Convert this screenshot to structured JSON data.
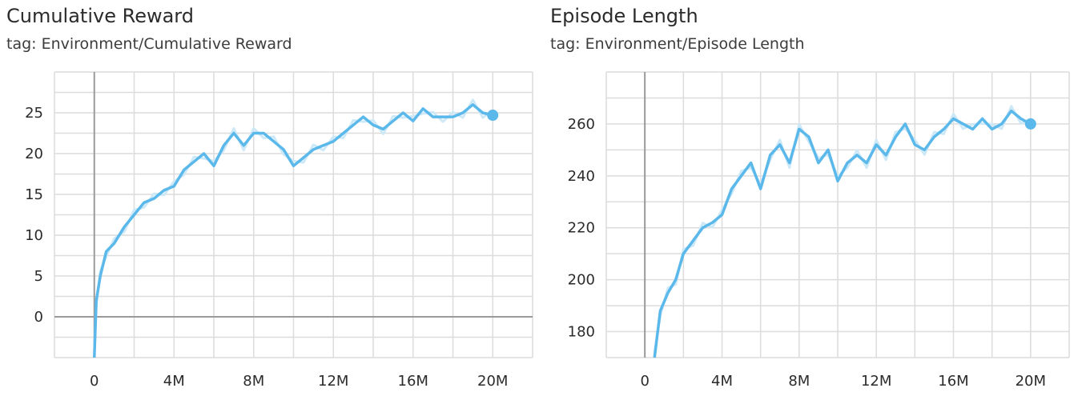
{
  "chart_data": [
    {
      "type": "line",
      "title": "Cumulative Reward",
      "subtitle": "tag: Environment/Cumulative Reward",
      "xlim": [
        -2000000,
        22000000
      ],
      "ylim": [
        -5,
        30
      ],
      "xticks": [
        0,
        4000000,
        8000000,
        12000000,
        16000000,
        20000000
      ],
      "xtick_labels": [
        "0",
        "4M",
        "8M",
        "12M",
        "16M",
        "20M"
      ],
      "yticks": [
        0,
        5,
        10,
        15,
        20,
        25
      ],
      "ytick_labels": [
        "0",
        "5",
        "10",
        "15",
        "20",
        "25"
      ],
      "grid": true,
      "series_color": "#5bb8ea",
      "raw_color": "#cde8f7",
      "series": [
        {
          "x": [
            0,
            100000,
            300000,
            600000,
            1000000,
            1500000,
            2000000,
            2500000,
            3000000,
            3500000,
            4000000,
            4500000,
            5000000,
            5500000,
            6000000,
            6500000,
            7000000,
            7500000,
            8000000,
            8500000,
            9000000,
            9500000,
            10000000,
            10500000,
            11000000,
            11500000,
            12000000,
            12500000,
            13000000,
            13500000,
            14000000,
            14500000,
            15000000,
            15500000,
            16000000,
            16500000,
            17000000,
            17500000,
            18000000,
            18500000,
            19000000,
            19500000,
            20000000
          ],
          "values": [
            -5,
            2,
            5,
            8,
            9,
            11,
            12.5,
            14,
            14.5,
            15.5,
            16,
            18,
            19,
            20,
            18.5,
            21,
            22.5,
            21,
            22.5,
            22.5,
            21.5,
            20.5,
            18.5,
            19.5,
            20.5,
            21,
            21.5,
            22.5,
            23.5,
            24.5,
            23.5,
            23,
            24,
            25,
            24,
            25.5,
            24.5,
            24.5,
            24.5,
            25,
            26,
            25,
            24.7
          ]
        }
      ]
    },
    {
      "type": "line",
      "title": "Episode Length",
      "subtitle": "tag: Environment/Episode Length",
      "xlim": [
        -2000000,
        22000000
      ],
      "ylim": [
        170,
        280
      ],
      "xticks": [
        0,
        4000000,
        8000000,
        12000000,
        16000000,
        20000000
      ],
      "xtick_labels": [
        "0",
        "4M",
        "8M",
        "12M",
        "16M",
        "20M"
      ],
      "yticks": [
        180,
        200,
        220,
        240,
        260
      ],
      "ytick_labels": [
        "180",
        "200",
        "220",
        "240",
        "260"
      ],
      "grid": true,
      "series_color": "#5bb8ea",
      "raw_color": "#cde8f7",
      "series": [
        {
          "x": [
            500000,
            800000,
            1200000,
            1600000,
            2000000,
            2500000,
            3000000,
            3500000,
            4000000,
            4500000,
            5000000,
            5500000,
            6000000,
            6500000,
            7000000,
            7500000,
            8000000,
            8500000,
            9000000,
            9500000,
            10000000,
            10500000,
            11000000,
            11500000,
            12000000,
            12500000,
            13000000,
            13500000,
            14000000,
            14500000,
            15000000,
            15500000,
            16000000,
            16500000,
            17000000,
            17500000,
            18000000,
            18500000,
            19000000,
            19500000,
            20000000
          ],
          "values": [
            170,
            188,
            195,
            200,
            210,
            215,
            220,
            222,
            225,
            235,
            240,
            245,
            235,
            248,
            252,
            245,
            258,
            255,
            245,
            250,
            238,
            245,
            248,
            245,
            252,
            248,
            255,
            260,
            252,
            250,
            255,
            258,
            262,
            260,
            258,
            262,
            258,
            260,
            265,
            262,
            260
          ]
        }
      ]
    }
  ]
}
